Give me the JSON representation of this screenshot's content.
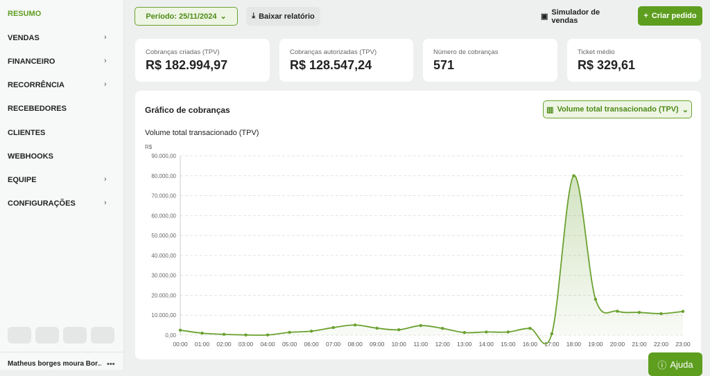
{
  "sidebar": {
    "items": [
      "RESUMO",
      "VENDAS",
      "FINANCEIRO",
      "RECORRÊNCIA",
      "RECEBEDORES",
      "CLIENTES",
      "WEBHOOKS",
      "EQUIPE",
      "CONFIGURAÇÕES"
    ],
    "user": "Matheus borges moura Bor…"
  },
  "header": {
    "period": "Período: 25/11/2024",
    "download": "Baixar relatório",
    "simulator": "Simulador de vendas",
    "create": "Criar pedido"
  },
  "kpis": [
    {
      "label": "Cobranças criadas (TPV)",
      "value": "R$ 182.994,97"
    },
    {
      "label": "Cobranças autorizadas (TPV)",
      "value": "R$ 128.547,24"
    },
    {
      "label": "Número de cobranças",
      "value": "571"
    },
    {
      "label": "Ticket médio",
      "value": "R$ 329,61"
    }
  ],
  "chart_panel": {
    "title": "Gráfico de cobranças",
    "selector": "Volume total transacionado (TPV)"
  },
  "chart_data": {
    "type": "line",
    "title": "Volume total transacionado (TPV)",
    "y_unit": "R$",
    "categories": [
      "00:00",
      "01:00",
      "02:00",
      "03:00",
      "04:00",
      "05:00",
      "06:00",
      "07:00",
      "08:00",
      "09:00",
      "10:00",
      "11:00",
      "12:00",
      "13:00",
      "14:00",
      "15:00",
      "16:00",
      "17:00",
      "18:00",
      "19:00",
      "20:00",
      "21:00",
      "22:00",
      "23:00"
    ],
    "series": [
      {
        "name": "Volume total transacionado (TPV)",
        "color": "#6aa12f",
        "values": [
          2500,
          1000,
          400,
          100,
          100,
          1400,
          2000,
          3800,
          5100,
          3500,
          2700,
          4800,
          3400,
          1300,
          1600,
          1600,
          3400,
          700,
          80000,
          18000,
          12000,
          11400,
          10800,
          11900
        ]
      }
    ],
    "ylim": [
      0,
      90000
    ],
    "yticks": [
      {
        "value": 0,
        "label": "0,00"
      },
      {
        "value": 10000,
        "label": "10.000,00"
      },
      {
        "value": 20000,
        "label": "20.000,00"
      },
      {
        "value": 30000,
        "label": "30.000,00"
      },
      {
        "value": 40000,
        "label": "40.000,00"
      },
      {
        "value": 50000,
        "label": "50.000,00"
      },
      {
        "value": 60000,
        "label": "60.000,00"
      },
      {
        "value": 70000,
        "label": "70.000,00"
      },
      {
        "value": 80000,
        "label": "80.000,00"
      },
      {
        "value": 90000,
        "label": "90.000,00"
      }
    ],
    "grid": true
  },
  "help": "Ajuda"
}
